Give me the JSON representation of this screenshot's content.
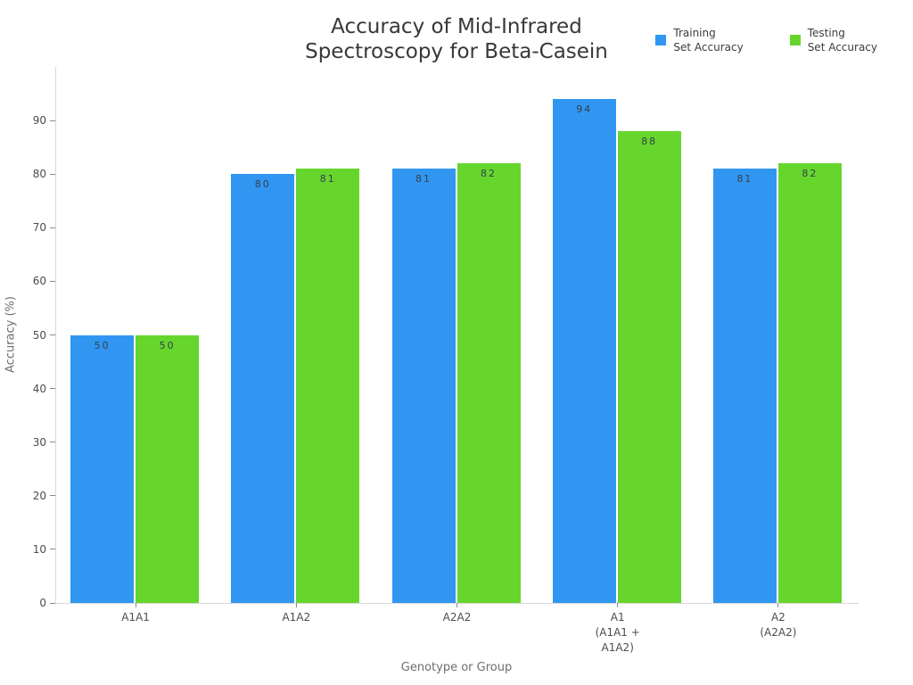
{
  "chart_data": {
    "type": "bar",
    "title": "Accuracy of Mid-Infrared\nSpectroscopy for Beta-Casein",
    "xlabel": "Genotype or Group",
    "ylabel": "Accuracy (%)",
    "categories": [
      "A1A1",
      "A1A2",
      "A2A2",
      "A1\n(A1A1 +\nA1A2)",
      "A2\n(A2A2)"
    ],
    "series": [
      {
        "name": "Training\nSet Accuracy",
        "color": "#3196f2",
        "values": [
          50,
          80,
          81,
          94,
          81
        ]
      },
      {
        "name": "Testing\nSet Accuracy",
        "color": "#66d62d",
        "values": [
          50,
          81,
          82,
          88,
          82
        ]
      }
    ],
    "ylim": [
      0,
      100
    ],
    "yticks": [
      0,
      10,
      20,
      30,
      40,
      50,
      60,
      70,
      80,
      90
    ],
    "grid": false,
    "legend_position": "top-right",
    "bar_value_labels": true
  },
  "colors": {
    "background": "#ffffff",
    "axis_line": "#d9d9d9",
    "tick_mark": "#8a8a8a",
    "title_text": "#383838",
    "tick_text": "#4c4c4c",
    "axis_title_text": "#6e6e6e",
    "bar_label_text": "#34404a",
    "legend_text": "#3c3c3c"
  }
}
